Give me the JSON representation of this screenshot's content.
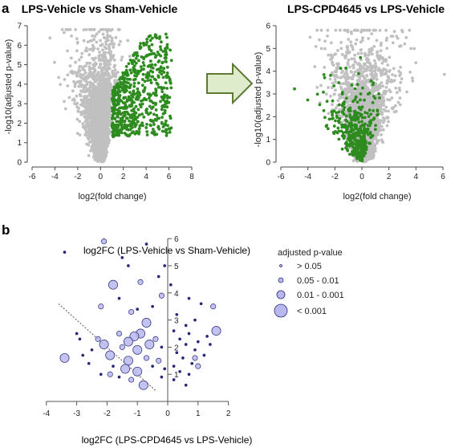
{
  "panel_labels": {
    "a": "a",
    "b": "b"
  },
  "legend": {
    "title": "adjusted p-value",
    "items": [
      "> 0.05",
      "0.05 - 0.01",
      "0.01 - 0.001",
      "< 0.001"
    ]
  },
  "colors": {
    "grey": "#c0c0c0",
    "green": "#2e8b1f",
    "bubble_fill": "#b8b8ee",
    "bubble_stroke": "#2a2a7a",
    "arrow_fill": "#dfeccb",
    "arrow_stroke": "#5d7a35"
  },
  "chart_data": [
    {
      "type": "scatter",
      "title": "LPS-Vehicle vs Sham-Vehicle",
      "xlabel": "log2(fold change)",
      "ylabel": "-log10(adjusted p-value)",
      "xlim": [
        -6,
        8
      ],
      "ylim": [
        0,
        7
      ],
      "xticks": [
        -6,
        -4,
        -2,
        0,
        2,
        4,
        6,
        8
      ],
      "yticks": [
        0,
        1,
        2,
        3,
        4,
        5,
        6,
        7
      ],
      "series": [
        {
          "color": "#c0c0c0",
          "shape": "volcano",
          "center": 0.1,
          "spread_left": 3.6,
          "spread_right": 1.5,
          "ymax": 6.8,
          "n": 2600
        },
        {
          "color": "#2e8b1f",
          "shape": "upregulated",
          "x_range": [
            1,
            7.2
          ],
          "y_range": [
            1.3,
            6.6
          ],
          "n": 640
        }
      ]
    },
    {
      "type": "scatter",
      "title": "LPS-CPD4645 vs LPS-Vehicle",
      "xlabel": "log2(fold change)",
      "ylabel": "-log10(adjusted p-value)",
      "xlim": [
        -6,
        6
      ],
      "ylim": [
        0,
        6
      ],
      "xticks": [
        -6,
        -4,
        -2,
        0,
        2,
        4,
        6
      ],
      "yticks": [
        0,
        1,
        2,
        3,
        4,
        5,
        6
      ],
      "series": [
        {
          "color": "#c0c0c0",
          "shape": "volcano",
          "center": 0.0,
          "spread_left": 3.0,
          "spread_right": 3.6,
          "ymax": 5.8,
          "n": 2600
        },
        {
          "color": "#2e8b1f",
          "shape": "v",
          "x_range": [
            -5.5,
            1.3
          ],
          "y_range": [
            0,
            4.6
          ],
          "n": 430
        }
      ]
    },
    {
      "type": "scatter",
      "title": "log2FC (LPS-Vehicle vs Sham-Vehicle)",
      "xlabel": "log2FC (LPS-CPD4645 vs LPS-Vehicle)",
      "ylabel": "",
      "xlim": [
        -4,
        2
      ],
      "ylim": [
        0,
        6
      ],
      "xticks": [
        -4,
        -3,
        -2,
        -1,
        0,
        1,
        2
      ],
      "yticks": [
        1,
        2,
        3,
        4,
        5,
        6
      ],
      "axes_at_zero": true,
      "reference_line": {
        "slope": -1,
        "intercept": 0,
        "style": "dotted"
      },
      "size_by": "adjusted p-value",
      "points": [
        {
          "x": -2.1,
          "y": 5.9,
          "s": 2
        },
        {
          "x": -3.4,
          "y": 5.5,
          "s": 1
        },
        {
          "x": -1.8,
          "y": 4.3,
          "s": 3
        },
        {
          "x": -1.5,
          "y": 5.3,
          "s": 1
        },
        {
          "x": -1.3,
          "y": 5.0,
          "s": 1
        },
        {
          "x": -0.9,
          "y": 4.4,
          "s": 2
        },
        {
          "x": -0.7,
          "y": 5.8,
          "s": 1
        },
        {
          "x": -0.1,
          "y": 5.0,
          "s": 1
        },
        {
          "x": -0.3,
          "y": 4.6,
          "s": 1
        },
        {
          "x": -0.2,
          "y": 3.9,
          "s": 2
        },
        {
          "x": -1.6,
          "y": 3.8,
          "s": 1
        },
        {
          "x": -2.2,
          "y": 3.5,
          "s": 2
        },
        {
          "x": -1.0,
          "y": 3.4,
          "s": 1
        },
        {
          "x": -1.2,
          "y": 3.3,
          "s": 2
        },
        {
          "x": -0.5,
          "y": 3.5,
          "s": 1
        },
        {
          "x": -0.4,
          "y": 2.3,
          "s": 2
        },
        {
          "x": -0.7,
          "y": 2.9,
          "s": 3
        },
        {
          "x": -0.9,
          "y": 2.5,
          "s": 3
        },
        {
          "x": -1.1,
          "y": 2.4,
          "s": 3
        },
        {
          "x": -0.6,
          "y": 2.1,
          "s": 3
        },
        {
          "x": -2.1,
          "y": 2.1,
          "s": 3
        },
        {
          "x": -1.9,
          "y": 1.7,
          "s": 3
        },
        {
          "x": -2.3,
          "y": 2.3,
          "s": 2
        },
        {
          "x": -2.5,
          "y": 1.9,
          "s": 1
        },
        {
          "x": -2.9,
          "y": 2.3,
          "s": 1
        },
        {
          "x": -3.4,
          "y": 1.6,
          "s": 3
        },
        {
          "x": -3.0,
          "y": 2.5,
          "s": 1
        },
        {
          "x": -1.6,
          "y": 2.5,
          "s": 2
        },
        {
          "x": -1.3,
          "y": 2.2,
          "s": 3
        },
        {
          "x": -1.5,
          "y": 2.0,
          "s": 2
        },
        {
          "x": -1.0,
          "y": 1.9,
          "s": 3
        },
        {
          "x": -1.3,
          "y": 1.5,
          "s": 3
        },
        {
          "x": -1.4,
          "y": 1.2,
          "s": 3
        },
        {
          "x": -1.0,
          "y": 1.1,
          "s": 3
        },
        {
          "x": -0.8,
          "y": 0.6,
          "s": 3
        },
        {
          "x": -0.7,
          "y": 1.6,
          "s": 2
        },
        {
          "x": -0.3,
          "y": 1.5,
          "s": 2
        },
        {
          "x": -0.2,
          "y": 2.0,
          "s": 1
        },
        {
          "x": -0.5,
          "y": 1.3,
          "s": 1
        },
        {
          "x": -1.8,
          "y": 1.3,
          "s": 1
        },
        {
          "x": -1.9,
          "y": 1.0,
          "s": 2
        },
        {
          "x": -1.6,
          "y": 0.9,
          "s": 1
        },
        {
          "x": -1.2,
          "y": 0.8,
          "s": 2
        },
        {
          "x": -2.2,
          "y": 1.0,
          "s": 1
        },
        {
          "x": -0.1,
          "y": 1.2,
          "s": 1
        },
        {
          "x": -0.2,
          "y": 0.9,
          "s": 1
        },
        {
          "x": -2.8,
          "y": 1.7,
          "s": 1
        },
        {
          "x": -2.6,
          "y": 1.4,
          "s": 1
        },
        {
          "x": 0.2,
          "y": 2.6,
          "s": 1
        },
        {
          "x": 0.4,
          "y": 2.3,
          "s": 1
        },
        {
          "x": 0.6,
          "y": 2.1,
          "s": 1
        },
        {
          "x": 0.7,
          "y": 2.5,
          "s": 1
        },
        {
          "x": 0.9,
          "y": 1.9,
          "s": 1
        },
        {
          "x": 1.0,
          "y": 2.2,
          "s": 1
        },
        {
          "x": 0.3,
          "y": 1.8,
          "s": 1
        },
        {
          "x": 0.5,
          "y": 1.6,
          "s": 1
        },
        {
          "x": 0.8,
          "y": 1.4,
          "s": 1
        },
        {
          "x": 1.2,
          "y": 1.7,
          "s": 1
        },
        {
          "x": 1.4,
          "y": 2.1,
          "s": 1
        },
        {
          "x": 0.2,
          "y": 1.3,
          "s": 1
        },
        {
          "x": 0.4,
          "y": 1.1,
          "s": 1
        },
        {
          "x": 0.7,
          "y": 1.0,
          "s": 1
        },
        {
          "x": 0.3,
          "y": 3.2,
          "s": 1
        },
        {
          "x": 0.6,
          "y": 2.8,
          "s": 1
        },
        {
          "x": 0.9,
          "y": 3.0,
          "s": 1
        },
        {
          "x": 1.1,
          "y": 3.6,
          "s": 1
        },
        {
          "x": 1.6,
          "y": 2.6,
          "s": 3
        },
        {
          "x": 1.5,
          "y": 3.5,
          "s": 2
        },
        {
          "x": 0.7,
          "y": 3.8,
          "s": 1
        },
        {
          "x": 0.9,
          "y": 1.6,
          "s": 2
        },
        {
          "x": 1.0,
          "y": 1.3,
          "s": 2
        },
        {
          "x": 0.6,
          "y": 0.6,
          "s": 1
        },
        {
          "x": 0.1,
          "y": 4.3,
          "s": 1
        },
        {
          "x": 0.2,
          "y": 0.8,
          "s": 1
        },
        {
          "x": 1.3,
          "y": 2.4,
          "s": 1
        }
      ]
    }
  ]
}
